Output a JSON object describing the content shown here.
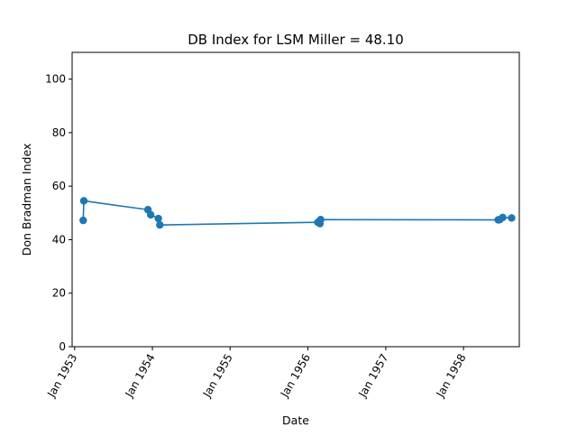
{
  "chart_data": {
    "type": "line",
    "title": "DB Index for LSM Miller = 48.10",
    "xlabel": "Date",
    "ylabel": "Don Bradman Index",
    "ylim": [
      0,
      110
    ],
    "xlim": [
      "1952-12-20",
      "1958-09-20"
    ],
    "grid": false,
    "legend": "none",
    "color": "#1f77b4",
    "x_ticks": [
      {
        "date": "1953-01-01",
        "label": "Jan 1953"
      },
      {
        "date": "1954-01-01",
        "label": "Jan 1954"
      },
      {
        "date": "1955-01-01",
        "label": "Jan 1955"
      },
      {
        "date": "1956-01-01",
        "label": "Jan 1956"
      },
      {
        "date": "1957-01-01",
        "label": "Jan 1957"
      },
      {
        "date": "1958-01-01",
        "label": "Jan 1958"
      }
    ],
    "y_ticks": [
      {
        "value": 0,
        "label": "0"
      },
      {
        "value": 20,
        "label": "20"
      },
      {
        "value": 40,
        "label": "40"
      },
      {
        "value": 60,
        "label": "60"
      },
      {
        "value": 80,
        "label": "80"
      },
      {
        "value": 100,
        "label": "100"
      }
    ],
    "series": [
      {
        "points": [
          {
            "x": "1953-02-10",
            "y": 47.2
          },
          {
            "x": "1953-02-13",
            "y": 54.5
          },
          {
            "x": "1953-12-11",
            "y": 51.2
          },
          {
            "x": "1953-12-24",
            "y": 49.3
          },
          {
            "x": "1954-01-29",
            "y": 47.9
          },
          {
            "x": "1954-02-05",
            "y": 45.5
          },
          {
            "x": "1956-02-17",
            "y": 46.5
          },
          {
            "x": "1956-02-27",
            "y": 46.0
          },
          {
            "x": "1956-03-01",
            "y": 47.5
          },
          {
            "x": "1958-06-13",
            "y": 47.4
          },
          {
            "x": "1958-06-20",
            "y": 47.5
          },
          {
            "x": "1958-07-04",
            "y": 48.3
          },
          {
            "x": "1958-08-15",
            "y": 48.1
          }
        ]
      }
    ]
  }
}
